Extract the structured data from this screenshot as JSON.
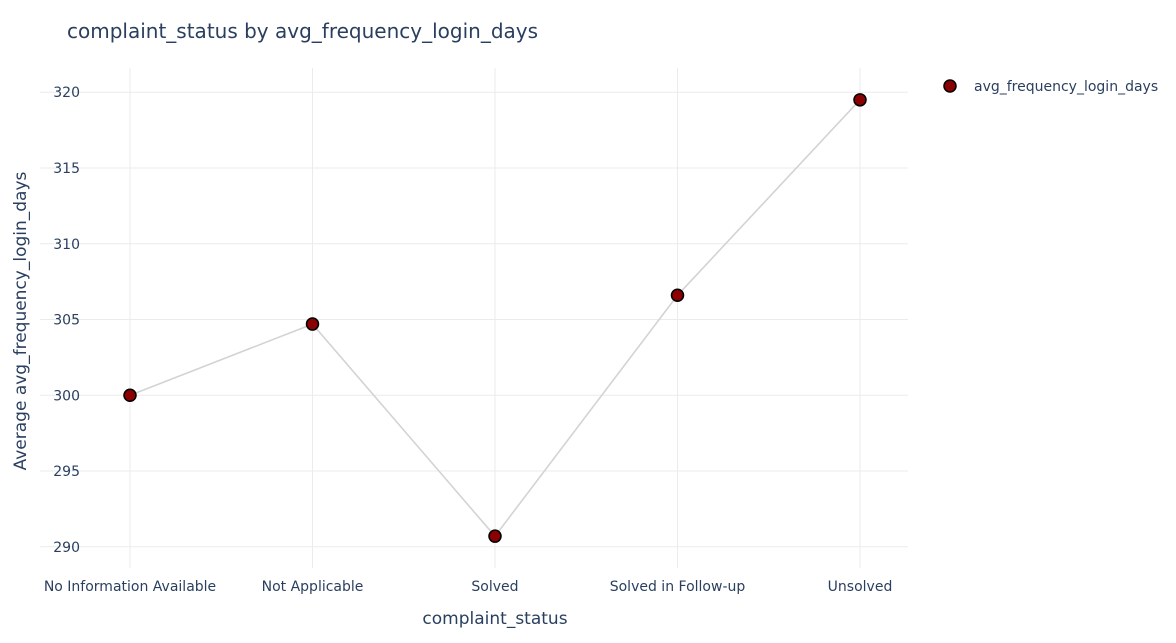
{
  "chart_data": {
    "type": "line",
    "title": "complaint_status by avg_frequency_login_days",
    "xlabel": "complaint_status",
    "ylabel": "Average avg_frequency_login_days",
    "categories": [
      "No Information Available",
      "Not Applicable",
      "Solved",
      "Solved in Follow-up",
      "Unsolved"
    ],
    "series": [
      {
        "name": "avg_frequency_login_days",
        "values": [
          300.0,
          304.7,
          290.7,
          306.6,
          319.5
        ]
      }
    ],
    "ylim": [
      288.6,
      321.6
    ],
    "yticks": [
      290,
      295,
      300,
      305,
      310,
      315,
      320
    ],
    "grid": true,
    "legend_position": "top-right",
    "colors": {
      "line": "#d3d3d3",
      "marker_fill": "#8b0000",
      "marker_edge": "#000000"
    }
  }
}
